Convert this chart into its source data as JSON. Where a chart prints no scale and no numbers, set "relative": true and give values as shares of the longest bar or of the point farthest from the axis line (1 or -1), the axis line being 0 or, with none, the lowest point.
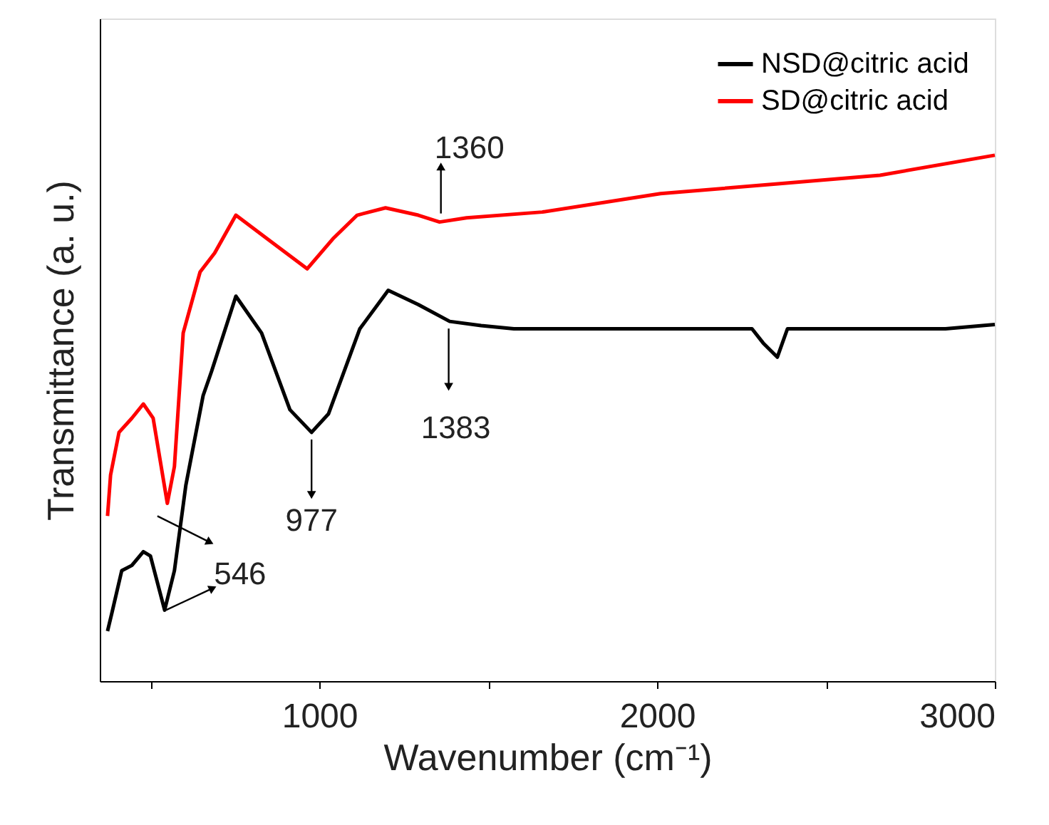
{
  "chart_data": {
    "type": "line",
    "xlabel": "Wavenumber (cm⁻¹)",
    "ylabel": "Transmittance (a. u.)",
    "relative": true,
    "xlim": [
      350,
      3000
    ],
    "xticks": [
      {
        "value": 500,
        "label": null
      },
      1000,
      {
        "value": 1500,
        "label": null
      },
      2000,
      {
        "value": 2500,
        "label": null
      },
      3000
    ],
    "legend": "top right",
    "grid": false,
    "series": [
      {
        "name": "NSD@citric acid",
        "color": "#000000",
        "x": [
          373,
          386,
          415,
          445,
          479,
          500,
          542,
          571,
          605,
          656,
          681,
          753,
          829,
          913,
          977,
          1027,
          1120,
          1204,
          1293,
          1386,
          1479,
          1576,
          2281,
          2314,
          2356,
          2386,
          2854,
          3000
        ],
        "values": [
          0.095,
          0.13,
          0.21,
          0.22,
          0.246,
          0.238,
          0.135,
          0.21,
          0.373,
          0.543,
          0.589,
          0.732,
          0.662,
          0.516,
          0.473,
          0.508,
          0.67,
          0.743,
          0.716,
          0.684,
          0.676,
          0.67,
          0.67,
          0.643,
          0.616,
          0.67,
          0.67,
          0.678
        ]
      },
      {
        "name": "SD@citric acid",
        "color": "#ff0000",
        "x": [
          373,
          382,
          407,
          445,
          479,
          508,
          550,
          571,
          597,
          647,
          690,
          753,
          846,
          964,
          1040,
          1112,
          1196,
          1293,
          1356,
          1436,
          1660,
          2010,
          2364,
          2660,
          3000
        ],
        "values": [
          0.314,
          0.392,
          0.473,
          0.5,
          0.527,
          0.5,
          0.338,
          0.408,
          0.662,
          0.778,
          0.814,
          0.886,
          0.841,
          0.784,
          0.841,
          0.886,
          0.9,
          0.886,
          0.873,
          0.881,
          0.892,
          0.927,
          0.946,
          0.962,
          1.0
        ]
      }
    ],
    "annotations": [
      {
        "text": "1360",
        "x": 1360,
        "y": 0.873
      },
      {
        "text": "1383",
        "x": 1383,
        "y": 0.684
      },
      {
        "text": "977",
        "x": 977,
        "y": 0.473
      },
      {
        "text": "546",
        "x": 546,
        "y": 0.135
      }
    ]
  }
}
